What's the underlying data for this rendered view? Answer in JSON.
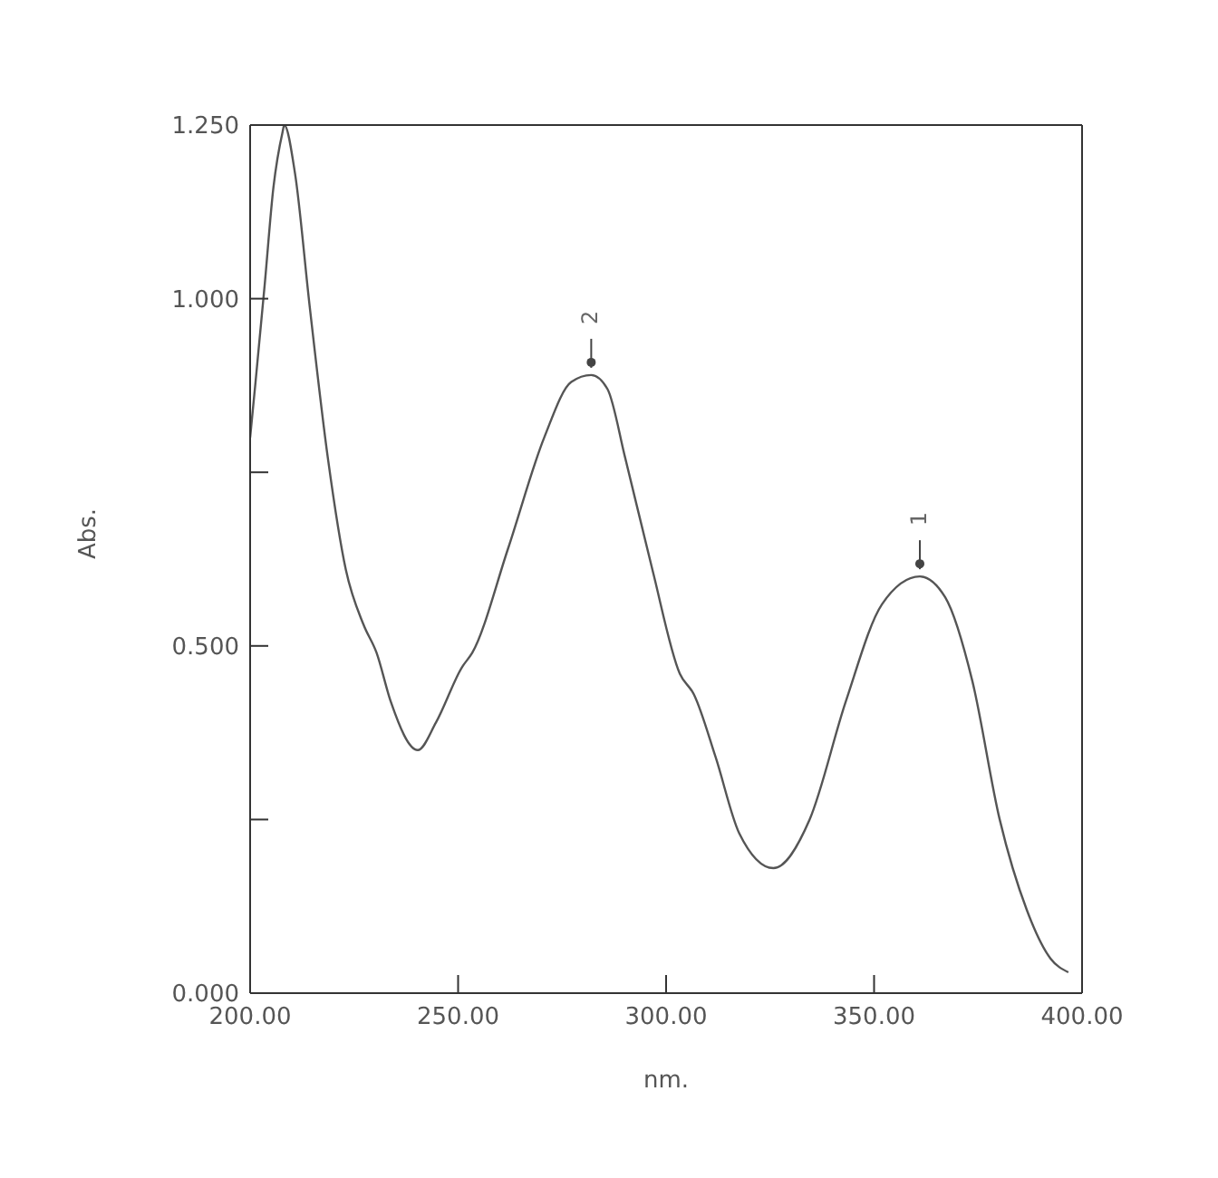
{
  "chart_data": {
    "type": "line",
    "xlabel": "nm.",
    "ylabel": "Abs.",
    "x": [
      200,
      201.3,
      203.5,
      205.6,
      207.8,
      208.2,
      210.8,
      214.3,
      218.7,
      223,
      227.3,
      230.4,
      233.8,
      240.3,
      244.7,
      251,
      253.4,
      262,
      270.7,
      277.2,
      282,
      285.9,
      290.2,
      296.7,
      303.3,
      306.7,
      311.9,
      317.6,
      325.8,
      334.5,
      343.2,
      351.9,
      361,
      367.1,
      373.6,
      380.2,
      386.7,
      392.4,
      396.7
    ],
    "series": [
      {
        "color": "#555555",
        "values": [
          0.8,
          0.88,
          1.02,
          1.16,
          1.24,
          1.25,
          1.18,
          0.99,
          0.77,
          0.61,
          0.53,
          0.49,
          0.42,
          0.35,
          0.39,
          0.47,
          0.49,
          0.64,
          0.8,
          0.88,
          0.89,
          0.87,
          0.77,
          0.61,
          0.46,
          0.43,
          0.34,
          0.23,
          0.18,
          0.25,
          0.42,
          0.56,
          0.6,
          0.57,
          0.45,
          0.25,
          0.12,
          0.05,
          0.03
        ]
      }
    ],
    "xlim": [
      200,
      400
    ],
    "ylim": [
      0,
      1.25
    ],
    "xticks": [
      {
        "value": 200,
        "label": "200.00"
      },
      {
        "value": 250,
        "label": "250.00"
      },
      {
        "value": 300,
        "label": "300.00"
      },
      {
        "value": 350,
        "label": "350.00"
      },
      {
        "value": 400,
        "label": "400.00"
      }
    ],
    "yticks": [
      {
        "value": 0,
        "label": "0.000"
      },
      {
        "value": 0.25,
        "label": null
      },
      {
        "value": 0.5,
        "label": "0.500"
      },
      {
        "value": 0.75,
        "label": null
      },
      {
        "value": 1,
        "label": "1.000"
      },
      {
        "value": 1.25,
        "label": "1.250"
      }
    ],
    "annotations": [
      {
        "text": "2",
        "x": 282,
        "y": 0.89
      },
      {
        "text": "1",
        "x": 361,
        "y": 0.6
      }
    ],
    "marker": "none",
    "line_style": "solid"
  }
}
